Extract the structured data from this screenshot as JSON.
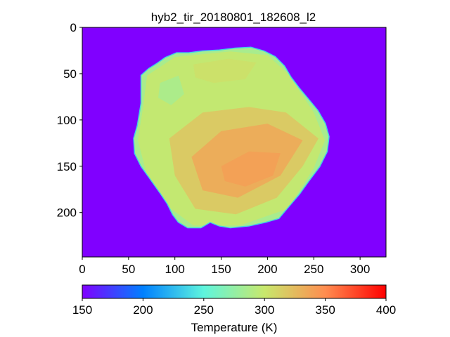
{
  "chart_data": {
    "type": "heatmap",
    "title": "hyb2_tir_20180801_182608_l2",
    "image_extent": {
      "x": [
        0,
        328
      ],
      "y": [
        0,
        248
      ]
    },
    "x_ticks": [
      0,
      50,
      100,
      150,
      200,
      250,
      300
    ],
    "y_ticks": [
      0,
      50,
      100,
      150,
      200
    ],
    "background_value": 150,
    "colormap": "rainbow",
    "colormap_stops": [
      "#8000ff",
      "#0080ff",
      "#5ef5dd",
      "#c8e86c",
      "#ff8d50",
      "#ff0000"
    ],
    "colorbar": {
      "label": "Temperature (K)",
      "range": [
        150,
        400
      ],
      "ticks": [
        150,
        200,
        250,
        300,
        350,
        400
      ],
      "orientation": "horizontal"
    },
    "asteroid_outline": [
      [
        64,
        52
      ],
      [
        72,
        45
      ],
      [
        80,
        40
      ],
      [
        90,
        33
      ],
      [
        102,
        28
      ],
      [
        115,
        28
      ],
      [
        130,
        26
      ],
      [
        148,
        25
      ],
      [
        165,
        23
      ],
      [
        182,
        22
      ],
      [
        196,
        26
      ],
      [
        208,
        32
      ],
      [
        218,
        42
      ],
      [
        225,
        54
      ],
      [
        234,
        66
      ],
      [
        244,
        78
      ],
      [
        254,
        90
      ],
      [
        262,
        104
      ],
      [
        266,
        118
      ],
      [
        264,
        134
      ],
      [
        256,
        150
      ],
      [
        244,
        166
      ],
      [
        234,
        180
      ],
      [
        222,
        194
      ],
      [
        212,
        206
      ],
      [
        198,
        210
      ],
      [
        180,
        214
      ],
      [
        160,
        216
      ],
      [
        148,
        214
      ],
      [
        138,
        210
      ],
      [
        128,
        216
      ],
      [
        114,
        216
      ],
      [
        104,
        210
      ],
      [
        98,
        202
      ],
      [
        92,
        190
      ],
      [
        84,
        178
      ],
      [
        74,
        164
      ],
      [
        64,
        150
      ],
      [
        57,
        136
      ],
      [
        56,
        120
      ],
      [
        60,
        106
      ],
      [
        62,
        94
      ],
      [
        64,
        82
      ],
      [
        64,
        70
      ],
      [
        64,
        60
      ]
    ],
    "temperature_regions": [
      {
        "value": 300,
        "points": [
          [
            70,
            52
          ],
          [
            100,
            32
          ],
          [
            160,
            26
          ],
          [
            200,
            30
          ],
          [
            222,
            50
          ],
          [
            250,
            92
          ],
          [
            262,
            122
          ],
          [
            250,
            152
          ],
          [
            222,
            196
          ],
          [
            170,
            214
          ],
          [
            120,
            214
          ],
          [
            96,
            196
          ],
          [
            70,
            160
          ],
          [
            60,
            122
          ],
          [
            66,
            84
          ]
        ]
      },
      {
        "value": 320,
        "points": [
          [
            94,
            120
          ],
          [
            130,
            92
          ],
          [
            180,
            86
          ],
          [
            220,
            92
          ],
          [
            255,
            120
          ],
          [
            238,
            150
          ],
          [
            210,
            184
          ],
          [
            166,
            202
          ],
          [
            122,
            196
          ],
          [
            100,
            160
          ]
        ]
      },
      {
        "value": 335,
        "points": [
          [
            118,
            140
          ],
          [
            150,
            112
          ],
          [
            200,
            104
          ],
          [
            238,
            122
          ],
          [
            214,
            160
          ],
          [
            168,
            184
          ],
          [
            130,
            176
          ]
        ]
      },
      {
        "value": 340,
        "points": [
          [
            150,
            150
          ],
          [
            180,
            134
          ],
          [
            214,
            136
          ],
          [
            206,
            160
          ],
          [
            176,
            172
          ],
          [
            154,
            166
          ]
        ]
      },
      {
        "value": 305,
        "points": [
          [
            120,
            40
          ],
          [
            158,
            34
          ],
          [
            188,
            38
          ],
          [
            176,
            56
          ],
          [
            142,
            60
          ],
          [
            122,
            54
          ]
        ]
      },
      {
        "value": 285,
        "points": [
          [
            84,
            60
          ],
          [
            104,
            52
          ],
          [
            110,
            72
          ],
          [
            96,
            84
          ],
          [
            82,
            76
          ]
        ]
      }
    ]
  }
}
